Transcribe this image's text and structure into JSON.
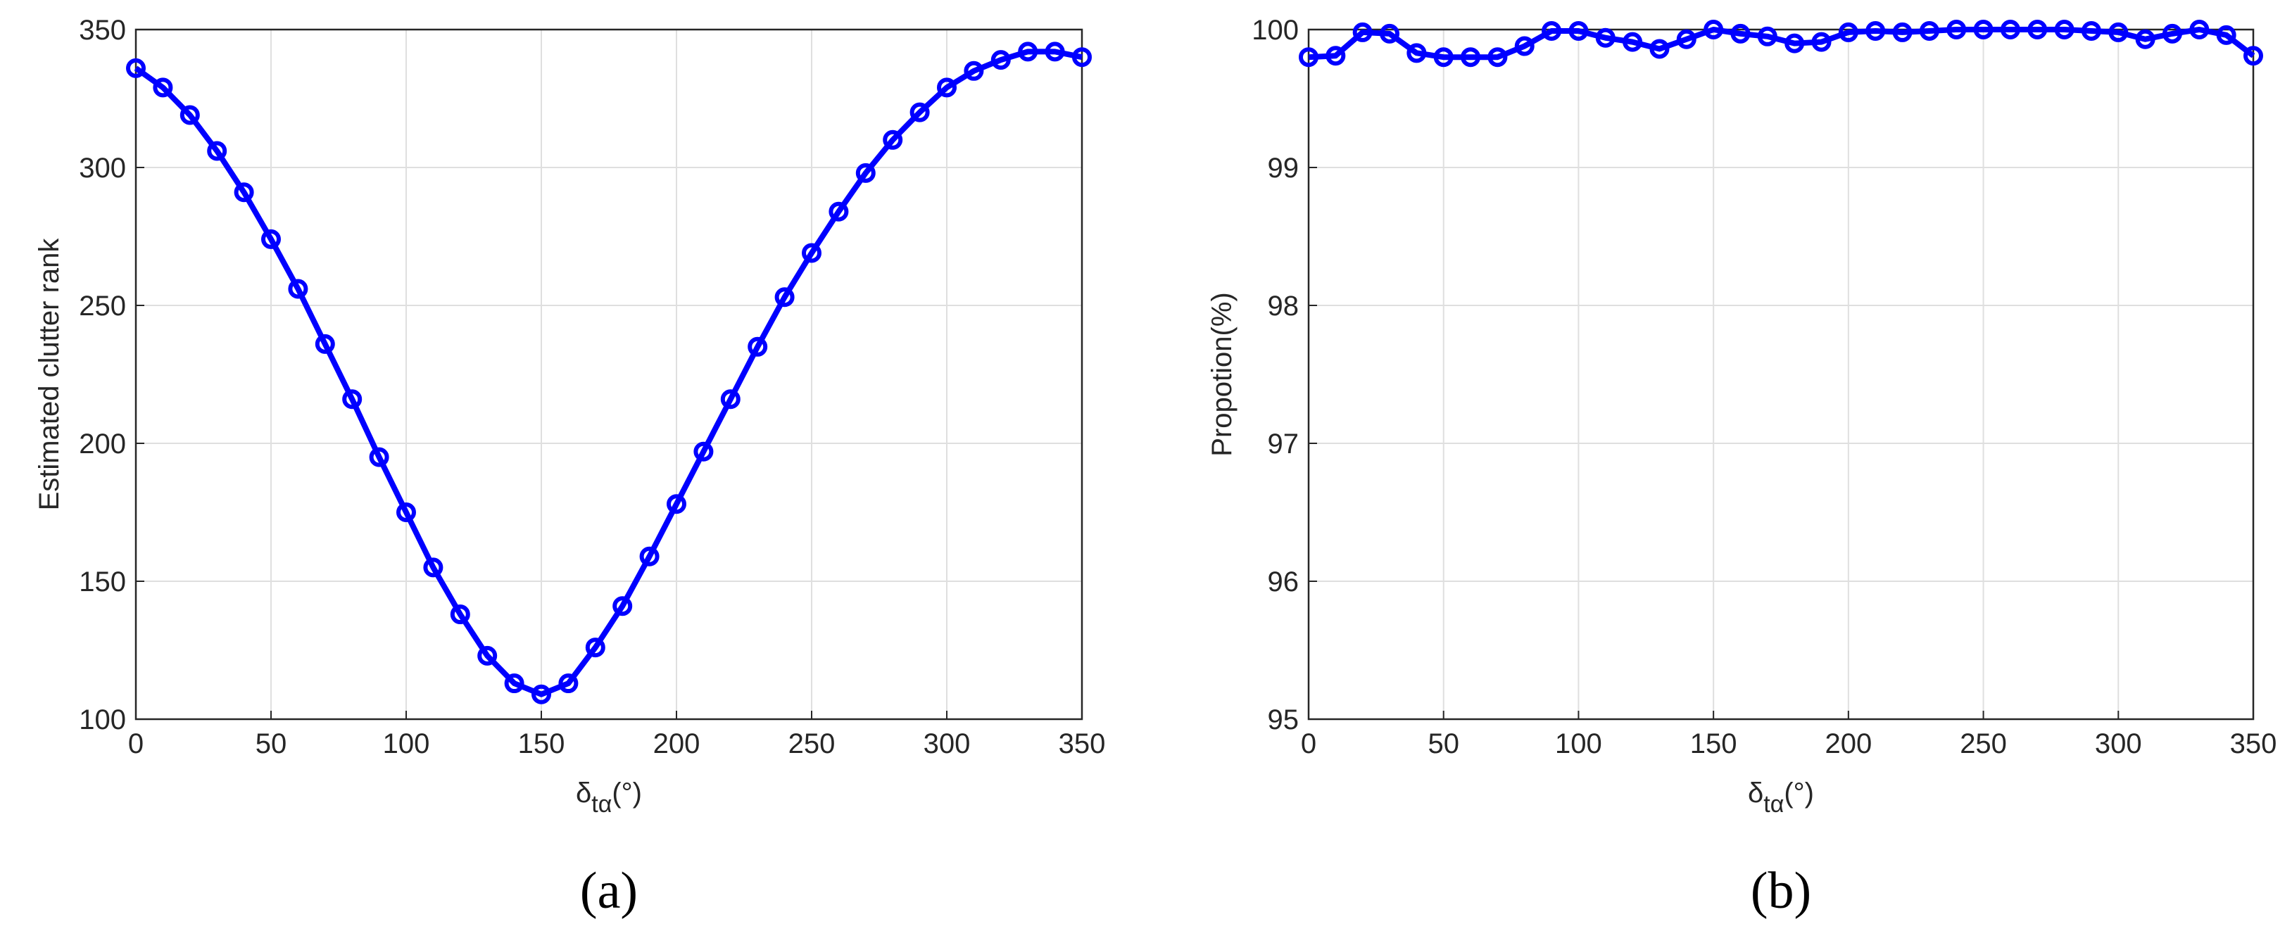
{
  "chart_data": [
    {
      "type": "line",
      "caption": "(a)",
      "y_label": "Estimated clutter rank",
      "x_label": {
        "main": "δ",
        "sub": "tα",
        "unit": "(°)"
      },
      "x": [
        0,
        10,
        20,
        30,
        40,
        50,
        60,
        70,
        80,
        90,
        100,
        110,
        120,
        130,
        140,
        150,
        160,
        170,
        180,
        190,
        200,
        210,
        220,
        230,
        240,
        250,
        260,
        270,
        280,
        290,
        300,
        310,
        320,
        330,
        340,
        350
      ],
      "series": [
        {
          "color": "#0000ff",
          "values": [
            336,
            329,
            319,
            306,
            291,
            274,
            256,
            236,
            216,
            195,
            175,
            155,
            138,
            123,
            113,
            109,
            113,
            126,
            141,
            159,
            178,
            197,
            216,
            235,
            253,
            269,
            284,
            298,
            310,
            320,
            329,
            335,
            339,
            342,
            342,
            340
          ]
        }
      ],
      "xlim": [
        0,
        350
      ],
      "xticks": [
        0,
        50,
        100,
        150,
        200,
        250,
        300,
        350
      ],
      "ylim": [
        100,
        350
      ],
      "yticks": [
        100,
        150,
        200,
        250,
        300,
        350
      ],
      "grid": true
    },
    {
      "type": "line",
      "caption": "(b)",
      "y_label": "Propotion(%)",
      "x_label": {
        "main": "δ",
        "sub": "tα",
        "unit": "(°)"
      },
      "x": [
        0,
        10,
        20,
        30,
        40,
        50,
        60,
        70,
        80,
        90,
        100,
        110,
        120,
        130,
        140,
        150,
        160,
        170,
        180,
        190,
        200,
        210,
        220,
        230,
        240,
        250,
        260,
        270,
        280,
        290,
        300,
        310,
        320,
        330,
        340,
        350
      ],
      "series": [
        {
          "color": "#0000ff",
          "values": [
            99.8,
            99.81,
            99.98,
            99.97,
            99.83,
            99.8,
            99.8,
            99.8,
            99.88,
            99.99,
            99.99,
            99.94,
            99.91,
            99.86,
            99.93,
            100,
            99.97,
            99.95,
            99.9,
            99.91,
            99.98,
            99.99,
            99.98,
            99.99,
            100,
            100,
            100,
            100,
            100,
            99.99,
            99.98,
            99.93,
            99.97,
            100,
            99.96,
            99.81
          ]
        }
      ],
      "xlim": [
        0,
        350
      ],
      "xticks": [
        0,
        50,
        100,
        150,
        200,
        250,
        300,
        350
      ],
      "ylim": [
        95,
        100
      ],
      "yticks": [
        95,
        96,
        97,
        98,
        99,
        100
      ],
      "grid": true
    }
  ]
}
